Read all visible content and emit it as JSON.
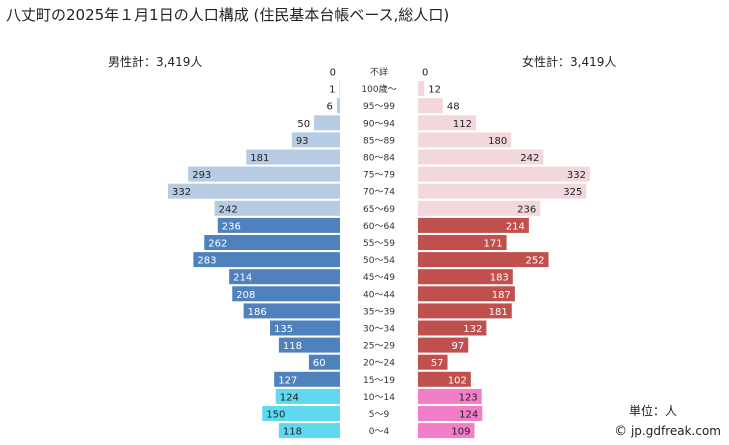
{
  "title": "八丈町の2025年１月1日の人口構成 (住民基本台帳ベース,総人口)",
  "male_label": "男性計：3,419人",
  "female_label": "女性計：3,419人",
  "unit_label": "単位：人",
  "credit": "jp.gdfreak.com",
  "credit_icon": "copyright-icon",
  "chart_data": {
    "type": "bar",
    "subtype": "population-pyramid",
    "title": "八丈町の2025年１月1日の人口構成 (住民基本台帳ベース,総人口)",
    "categories": [
      "不詳",
      "100歳～",
      "95～99",
      "90～94",
      "85～89",
      "80～84",
      "75～79",
      "70～74",
      "65～69",
      "60～64",
      "55～59",
      "50～54",
      "45～49",
      "40～44",
      "35～39",
      "30～34",
      "25～29",
      "20～24",
      "15～19",
      "10～14",
      "5～9",
      "0～4"
    ],
    "series": [
      {
        "name": "男性",
        "values": [
          0,
          1,
          6,
          50,
          93,
          181,
          293,
          332,
          242,
          236,
          262,
          283,
          214,
          208,
          186,
          135,
          118,
          60,
          127,
          124,
          150,
          118
        ]
      },
      {
        "name": "女性",
        "values": [
          0,
          12,
          48,
          112,
          180,
          242,
          332,
          325,
          236,
          214,
          171,
          252,
          183,
          187,
          181,
          132,
          97,
          57,
          102,
          123,
          124,
          109
        ]
      }
    ],
    "max_value": 332,
    "colors": {
      "male_elderly": "#b7cbe3",
      "male_working": "#4f81bd",
      "male_young": "#5fd8f0",
      "female_elderly": "#f2d8dc",
      "female_working": "#c0504d",
      "female_young": "#f27ec8"
    }
  }
}
